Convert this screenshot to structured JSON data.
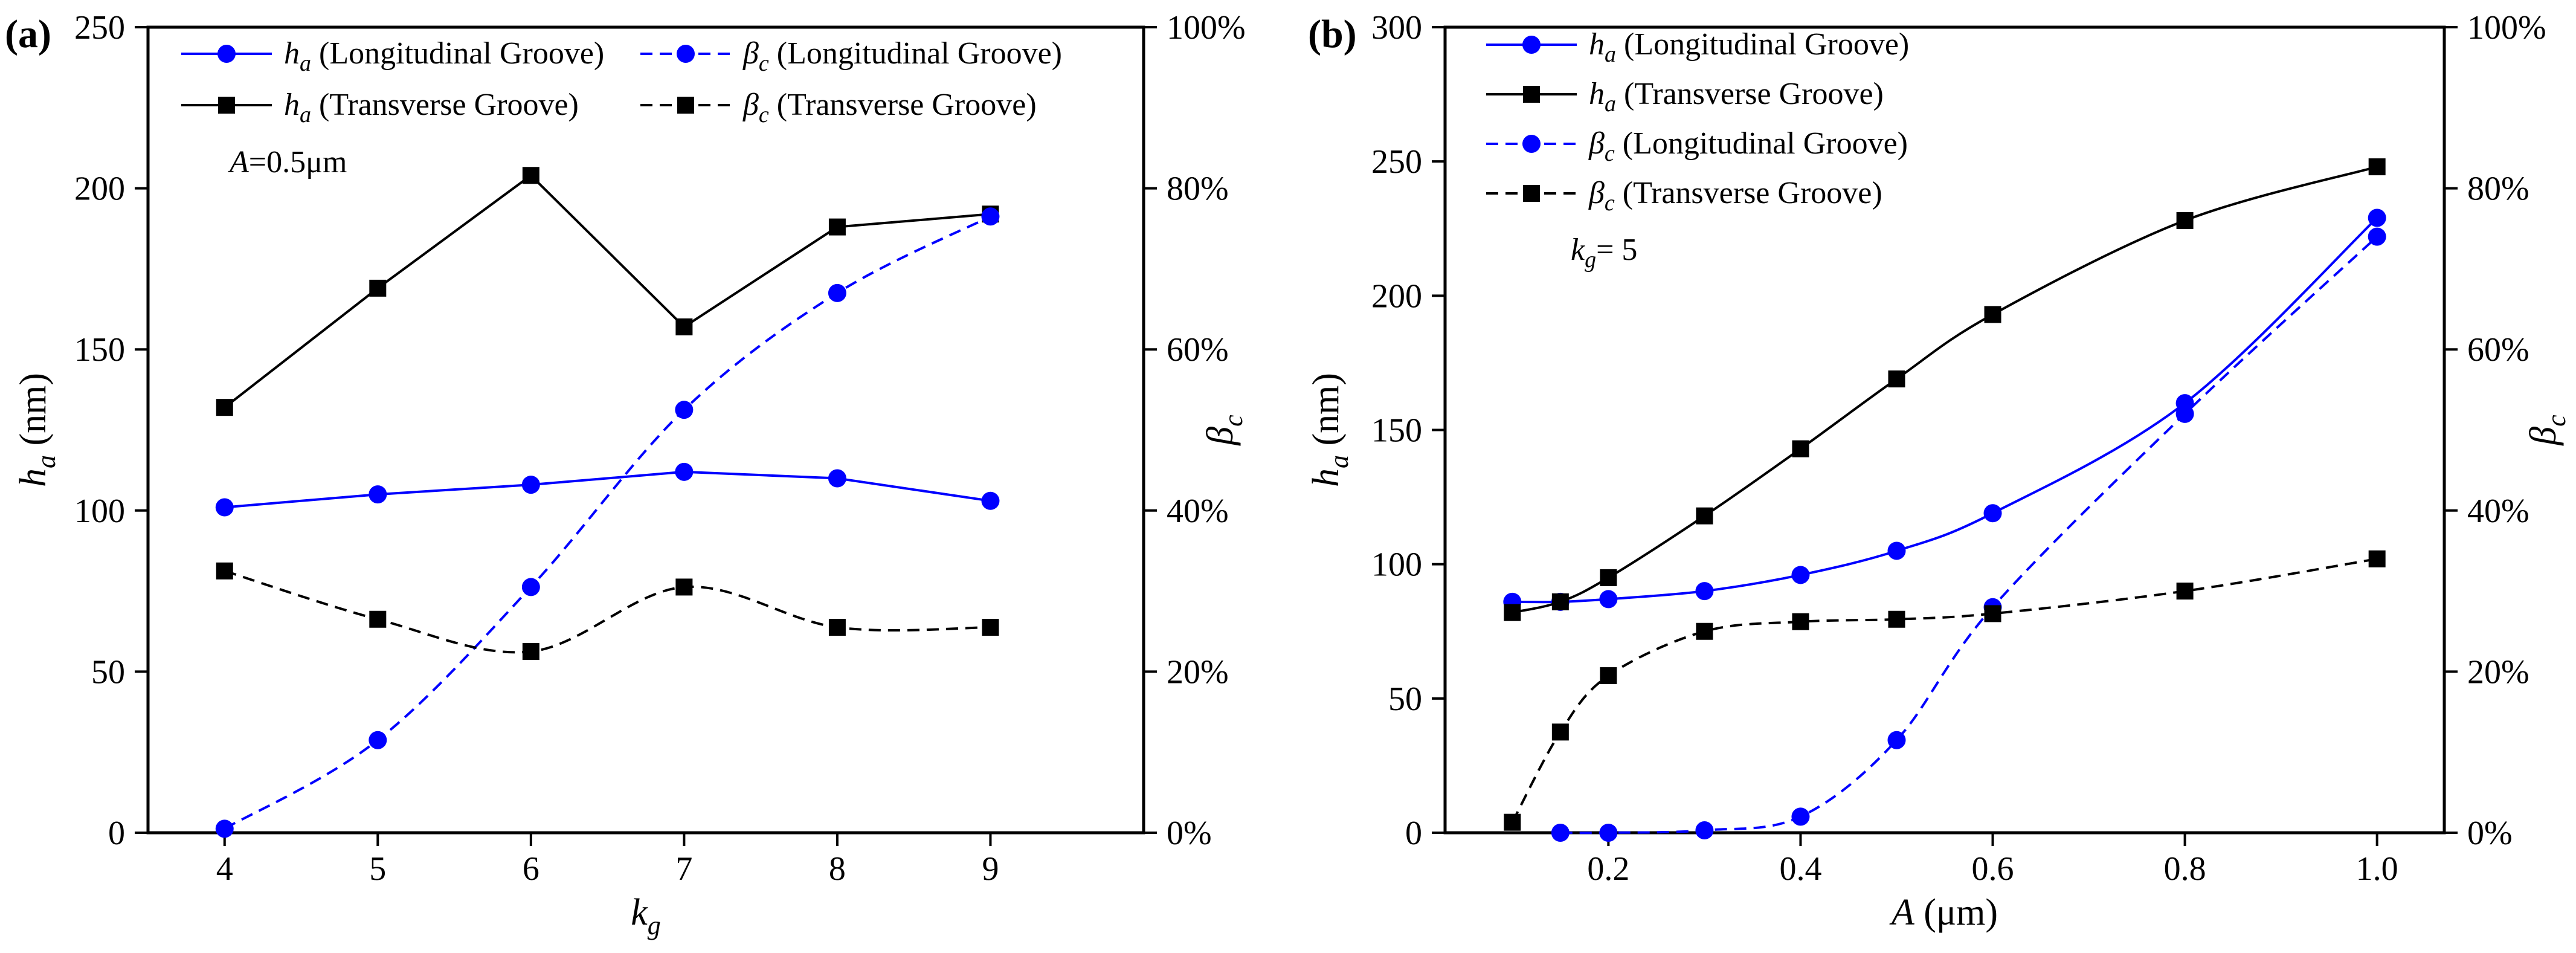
{
  "chart_data": [
    {
      "panel_label": "(a)",
      "type": "line",
      "xlabel": "k",
      "xlabel_sub": "g",
      "ylabel": "h",
      "ylabel_sub": "a",
      "ylabel_unit": " (nm)",
      "y2label": "β",
      "y2label_sub": "c",
      "xlim": [
        3.5,
        10
      ],
      "ylim": [
        0,
        250
      ],
      "y2lim": [
        0,
        1
      ],
      "xticks": [
        4,
        5,
        6,
        7,
        8,
        9
      ],
      "xtick_labels": [
        "4",
        "5",
        "6",
        "7",
        "8",
        "9"
      ],
      "yticks": [
        0,
        50,
        100,
        150,
        200,
        250
      ],
      "ytick_labels": [
        "0",
        "50",
        "100",
        "150",
        "200",
        "250"
      ],
      "y2ticks": [
        0,
        0.2,
        0.4,
        0.6,
        0.8,
        1.0
      ],
      "y2tick_labels": [
        "0%",
        "20%",
        "40%",
        "60%",
        "80%",
        "100%"
      ],
      "annotation": {
        "italic": "A",
        "rest": "=0.5μm"
      },
      "legend_position": "top",
      "legend_order": [
        0,
        2,
        1,
        3
      ],
      "series": [
        {
          "name": "h",
          "sub": "a",
          "rest": " (Longitudinal Groove)",
          "axis": "left",
          "color": "#0000ff",
          "marker": "circle",
          "dashed": false,
          "x": [
            4,
            5,
            6,
            7,
            8,
            9
          ],
          "values": [
            101,
            105,
            108,
            112,
            110,
            103
          ]
        },
        {
          "name": "h",
          "sub": "a",
          "rest": " (Transverse Groove)",
          "axis": "left",
          "color": "#000000",
          "marker": "square",
          "dashed": false,
          "x": [
            4,
            5,
            6,
            7,
            8,
            9
          ],
          "values": [
            132,
            169,
            204,
            157,
            188,
            192
          ]
        },
        {
          "name": "β",
          "sub": "c",
          "rest": " (Longitudinal Groove)",
          "axis": "right",
          "color": "#0000ff",
          "marker": "circle",
          "dashed": true,
          "x": [
            4,
            5,
            6,
            7,
            8,
            9
          ],
          "values": [
            0.005,
            0.115,
            0.305,
            0.525,
            0.67,
            0.765
          ]
        },
        {
          "name": "β",
          "sub": "c",
          "rest": " (Transverse Groove)",
          "axis": "right",
          "color": "#000000",
          "marker": "square",
          "dashed": true,
          "x": [
            4,
            5,
            6,
            7,
            8,
            9
          ],
          "values": [
            0.325,
            0.265,
            0.225,
            0.305,
            0.255,
            0.255
          ]
        }
      ]
    },
    {
      "panel_label": "(b)",
      "type": "line",
      "xlabel": "A",
      "xlabel_sub": "",
      "xlabel_unit": " (μm)",
      "ylabel": "h",
      "ylabel_sub": "a",
      "ylabel_unit": " (nm)",
      "y2label": "β",
      "y2label_sub": "c",
      "xlim": [
        0.03,
        1.07
      ],
      "ylim": [
        0,
        300
      ],
      "y2lim": [
        0,
        1
      ],
      "xticks": [
        0.2,
        0.4,
        0.6,
        0.8,
        1.0
      ],
      "xtick_labels": [
        "0.2",
        "0.4",
        "0.6",
        "0.8",
        "1.0"
      ],
      "yticks": [
        0,
        50,
        100,
        150,
        200,
        250,
        300
      ],
      "ytick_labels": [
        "0",
        "50",
        "100",
        "150",
        "200",
        "250",
        "300"
      ],
      "y2ticks": [
        0,
        0.2,
        0.4,
        0.6,
        0.8,
        1.0
      ],
      "y2tick_labels": [
        "0%",
        "20%",
        "40%",
        "60%",
        "80%",
        "100%"
      ],
      "annotation": {
        "italic": "k",
        "sub": "g",
        "rest": "= 5"
      },
      "legend_position": "top-left",
      "legend_order": [
        0,
        1,
        2,
        3
      ],
      "series": [
        {
          "name": "h",
          "sub": "a",
          "rest": " (Longitudinal Groove)",
          "axis": "left",
          "color": "#0000ff",
          "marker": "circle",
          "dashed": false,
          "x": [
            0.1,
            0.15,
            0.2,
            0.3,
            0.4,
            0.5,
            0.6,
            0.8,
            1.0
          ],
          "values": [
            86,
            86,
            87,
            90,
            96,
            105,
            119,
            160,
            229
          ]
        },
        {
          "name": "h",
          "sub": "a",
          "rest": " (Transverse Groove)",
          "axis": "left",
          "color": "#000000",
          "marker": "square",
          "dashed": false,
          "x": [
            0.1,
            0.15,
            0.2,
            0.3,
            0.4,
            0.5,
            0.6,
            0.8,
            1.0
          ],
          "values": [
            82,
            86,
            95,
            118,
            143,
            169,
            193,
            228,
            248
          ]
        },
        {
          "name": "β",
          "sub": "c",
          "rest": " (Longitudinal Groove)",
          "axis": "right",
          "color": "#0000ff",
          "marker": "circle",
          "dashed": true,
          "x": [
            0.15,
            0.2,
            0.3,
            0.4,
            0.5,
            0.6,
            0.8,
            1.0
          ],
          "values": [
            0.0,
            0.0,
            0.003,
            0.02,
            0.115,
            0.28,
            0.52,
            0.74
          ]
        },
        {
          "name": "β",
          "sub": "c",
          "rest": " (Transverse Groove)",
          "axis": "right",
          "color": "#000000",
          "marker": "square",
          "dashed": true,
          "x": [
            0.1,
            0.15,
            0.2,
            0.3,
            0.4,
            0.5,
            0.6,
            0.8,
            1.0
          ],
          "values": [
            0.013,
            0.125,
            0.195,
            0.25,
            0.262,
            0.265,
            0.272,
            0.3,
            0.34
          ]
        }
      ]
    }
  ]
}
